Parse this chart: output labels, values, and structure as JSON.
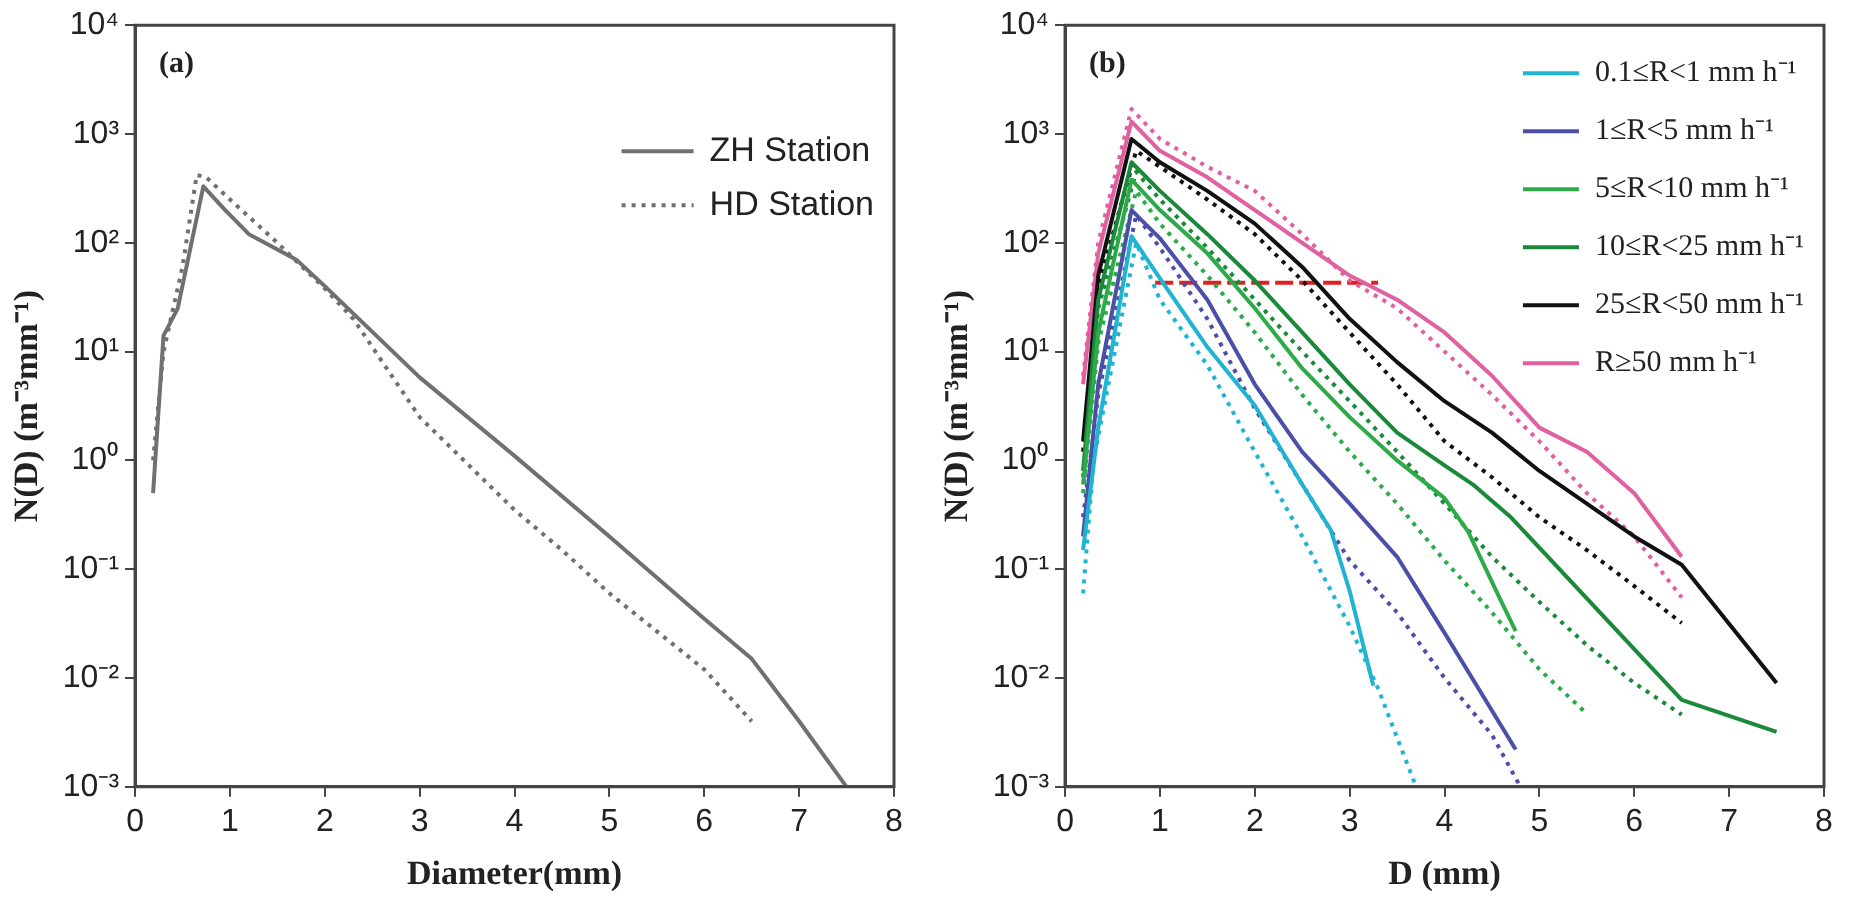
{
  "chart_data": [
    {
      "type": "line",
      "xlabel": "Diameter(mm)",
      "ylabel": "N(D) (m⁻³mm⁻¹)",
      "log": "y",
      "legend": "top right",
      "annotations": [
        "(a)"
      ],
      "xlim": [
        0,
        8
      ],
      "xticks": [
        0,
        1,
        2,
        3,
        4,
        5,
        6,
        7,
        8
      ],
      "ylim": [
        0.001,
        10000
      ],
      "yticks": [
        {
          "value": 0.001,
          "label": "10⁻³"
        },
        {
          "value": 0.01,
          "label": "10⁻²"
        },
        {
          "value": 0.1,
          "label": "10⁻¹"
        },
        {
          "value": 1,
          "label": "10⁰"
        },
        {
          "value": 10,
          "label": "10¹"
        },
        {
          "value": 100,
          "label": "10²"
        },
        {
          "value": 1000,
          "label": "10³"
        },
        {
          "value": 10000,
          "label": "10⁴"
        }
      ],
      "series": [
        {
          "name": "ZH Station",
          "color": "#707070",
          "line_style": "solid",
          "x": [
            0.19,
            0.3,
            0.45,
            0.72,
            0.95,
            1.2,
            1.7,
            2,
            3,
            4,
            5,
            6,
            6.5,
            7,
            7.5
          ],
          "values": [
            0.5,
            14,
            25,
            330,
            200,
            120,
            70,
            40,
            5.8,
            1.1,
            0.2,
            0.035,
            0.015,
            0.004,
            0.001
          ]
        },
        {
          "name": "HD Station",
          "color": "#707070",
          "line_style": "dotted",
          "x": [
            0.19,
            0.3,
            0.5,
            0.65,
            0.75,
            1,
            1.5,
            2,
            2.3,
            3,
            4,
            4.5,
            5,
            6,
            6.5
          ],
          "values": [
            1,
            10,
            60,
            420,
            400,
            250,
            100,
            38,
            20,
            2.5,
            0.35,
            0.15,
            0.06,
            0.012,
            0.004
          ]
        }
      ]
    },
    {
      "type": "line",
      "xlabel": "D (mm)",
      "ylabel": "N(D) (m⁻³mm⁻¹)",
      "log": "y",
      "legend": "top right",
      "annotations": [
        "(b)"
      ],
      "xlim": [
        0,
        8
      ],
      "xticks": [
        0,
        1,
        2,
        3,
        4,
        5,
        6,
        7,
        8
      ],
      "ylim": [
        0.001,
        10000
      ],
      "yticks": [
        {
          "value": 0.001,
          "label": "10⁻³"
        },
        {
          "value": 0.01,
          "label": "10⁻²"
        },
        {
          "value": 0.1,
          "label": "10⁻¹"
        },
        {
          "value": 1,
          "label": "10⁰"
        },
        {
          "value": 10,
          "label": "10¹"
        },
        {
          "value": 100,
          "label": "10²"
        },
        {
          "value": 1000,
          "label": "10³"
        },
        {
          "value": 10000,
          "label": "10⁴"
        }
      ],
      "series": [
        {
          "name": "0.1≤R<1 mm h⁻¹",
          "color": "#1fb4d2",
          "line_style": "solid",
          "x": [
            0.19,
            0.35,
            0.7,
            1,
            1.5,
            2,
            2.5,
            2.8,
            3,
            3.25
          ],
          "values": [
            0.15,
            2,
            115,
            47,
            11,
            3.2,
            0.6,
            0.23,
            0.063,
            0.0085
          ]
        },
        {
          "name": "1≤R<5 mm h⁻¹",
          "color": "#4b4fa8",
          "line_style": "solid",
          "x": [
            0.19,
            0.35,
            0.7,
            1,
            1.5,
            2,
            2.5,
            3,
            3.5,
            4,
            4.75
          ],
          "values": [
            0.2,
            5,
            200,
            110,
            30,
            5,
            1.2,
            0.4,
            0.13,
            0.026,
            0.0022
          ]
        },
        {
          "name": "5≤R<10 mm h⁻¹",
          "color": "#2eaa4a",
          "line_style": "solid",
          "x": [
            0.19,
            0.35,
            0.7,
            1,
            1.5,
            2,
            2.5,
            3,
            3.5,
            4,
            4.25,
            4.6,
            4.75
          ],
          "values": [
            0.6,
            15,
            380,
            200,
            80,
            25,
            7,
            2.5,
            1,
            0.45,
            0.22,
            0.05,
            0.027
          ]
        },
        {
          "name": "10≤R<25 mm h⁻¹",
          "color": "#1a8a3a",
          "line_style": "solid",
          "x": [
            0.19,
            0.35,
            0.7,
            1,
            1.5,
            2,
            2.5,
            3,
            3.5,
            4,
            4.3,
            4.7,
            6.5,
            7.5
          ],
          "values": [
            0.8,
            30,
            550,
            300,
            120,
            45,
            15,
            5,
            1.8,
            0.9,
            0.6,
            0.3,
            0.0063,
            0.0032
          ]
        },
        {
          "name": "25≤R<50 mm h⁻¹",
          "color": "#111111",
          "line_style": "solid",
          "x": [
            0.19,
            0.35,
            0.7,
            1,
            1.5,
            2,
            2.5,
            3,
            3.5,
            4,
            4.5,
            5,
            5.5,
            6,
            6.5,
            7.5
          ],
          "values": [
            1.5,
            50,
            900,
            550,
            300,
            150,
            60,
            20,
            8,
            3.5,
            1.8,
            0.8,
            0.4,
            0.2,
            0.11,
            0.009
          ]
        },
        {
          "name": "R≥50 mm h⁻¹",
          "color": "#e060a0",
          "line_style": "solid",
          "x": [
            0.19,
            0.35,
            0.7,
            1,
            1.5,
            2,
            2.5,
            3,
            3.5,
            4,
            4.5,
            5,
            5.5,
            6,
            6.5
          ],
          "values": [
            5,
            80,
            1300,
            700,
            400,
            200,
            100,
            50,
            30,
            15,
            6,
            2,
            1.2,
            0.5,
            0.13
          ]
        },
        {
          "color": "#1fb4d2",
          "line_style": "dotted",
          "x": [
            0.19,
            0.3,
            0.75,
            1,
            1.5,
            2,
            2.5,
            3,
            3.3,
            3.7
          ],
          "values": [
            0.06,
            1,
            100,
            30,
            7.5,
            1.2,
            0.2,
            0.03,
            0.008,
            0.001
          ]
        },
        {
          "color": "#4b4fa8",
          "line_style": "dotted",
          "x": [
            0.19,
            0.35,
            0.75,
            1,
            1.5,
            2,
            2.5,
            3,
            3.5,
            4,
            4.5,
            4.8
          ],
          "values": [
            0.3,
            4,
            180,
            90,
            20,
            3,
            0.6,
            0.12,
            0.04,
            0.01,
            0.003,
            0.001
          ]
        },
        {
          "color": "#2eaa4a",
          "line_style": "dotted",
          "x": [
            0.19,
            0.35,
            0.75,
            1,
            1.5,
            2,
            2.5,
            3,
            3.5,
            4,
            4.5,
            5,
            5.5
          ],
          "values": [
            0.5,
            12,
            300,
            150,
            50,
            15,
            4,
            1.2,
            0.4,
            0.12,
            0.04,
            0.012,
            0.0047
          ]
        },
        {
          "color": "#1a8a3a",
          "line_style": "dotted",
          "x": [
            0.19,
            0.35,
            0.75,
            1,
            1.5,
            2,
            2.5,
            3,
            3.5,
            4,
            4.5,
            5,
            5.5,
            6,
            6.5
          ],
          "values": [
            0.7,
            25,
            450,
            250,
            90,
            30,
            10,
            3.5,
            1.2,
            0.4,
            0.13,
            0.05,
            0.02,
            0.009,
            0.0046
          ]
        },
        {
          "color": "#111111",
          "line_style": "dotted",
          "x": [
            0.19,
            0.35,
            0.75,
            1,
            1.5,
            2,
            2.5,
            3,
            3.5,
            4,
            4.5,
            5,
            5.5,
            6,
            6.5
          ],
          "values": [
            1.2,
            40,
            700,
            500,
            250,
            120,
            45,
            15,
            5,
            1.5,
            0.7,
            0.3,
            0.15,
            0.07,
            0.032
          ]
        },
        {
          "color": "#e060a0",
          "line_style": "dotted",
          "x": [
            0.19,
            0.35,
            0.7,
            1,
            1.5,
            2,
            2.5,
            3,
            3.5,
            4,
            4.5,
            5,
            5.5,
            6,
            6.5
          ],
          "values": [
            6,
            100,
            1700,
            900,
            500,
            300,
            120,
            45,
            25,
            10,
            4,
            1.5,
            0.5,
            0.2,
            0.055
          ]
        },
        {
          "color": "#e02020",
          "line_style": "dashed",
          "x": [
            0.95,
            3.3
          ],
          "values": [
            43,
            43
          ]
        }
      ]
    }
  ]
}
